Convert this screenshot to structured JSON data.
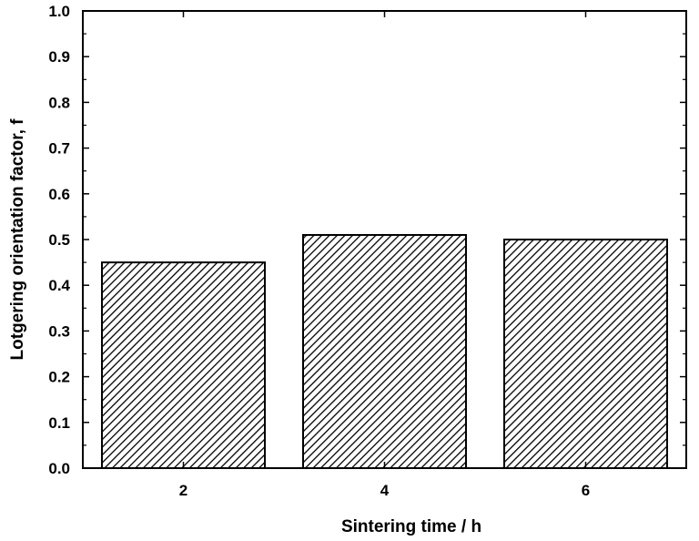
{
  "chart_data": {
    "type": "bar",
    "categories": [
      "2",
      "4",
      "6"
    ],
    "values": [
      0.45,
      0.51,
      0.5
    ],
    "xlabel": "Sintering time / h",
    "ylabel": "Lotgering orientation factor, f",
    "ylim": [
      0.0,
      1.0
    ],
    "yticks": [
      "0.0",
      "0.1",
      "0.2",
      "0.3",
      "0.4",
      "0.5",
      "0.6",
      "0.7",
      "0.8",
      "0.9",
      "1.0"
    ],
    "bar_fill": "hatched",
    "bar_color": "#000000",
    "grid": false,
    "legend": "none"
  }
}
